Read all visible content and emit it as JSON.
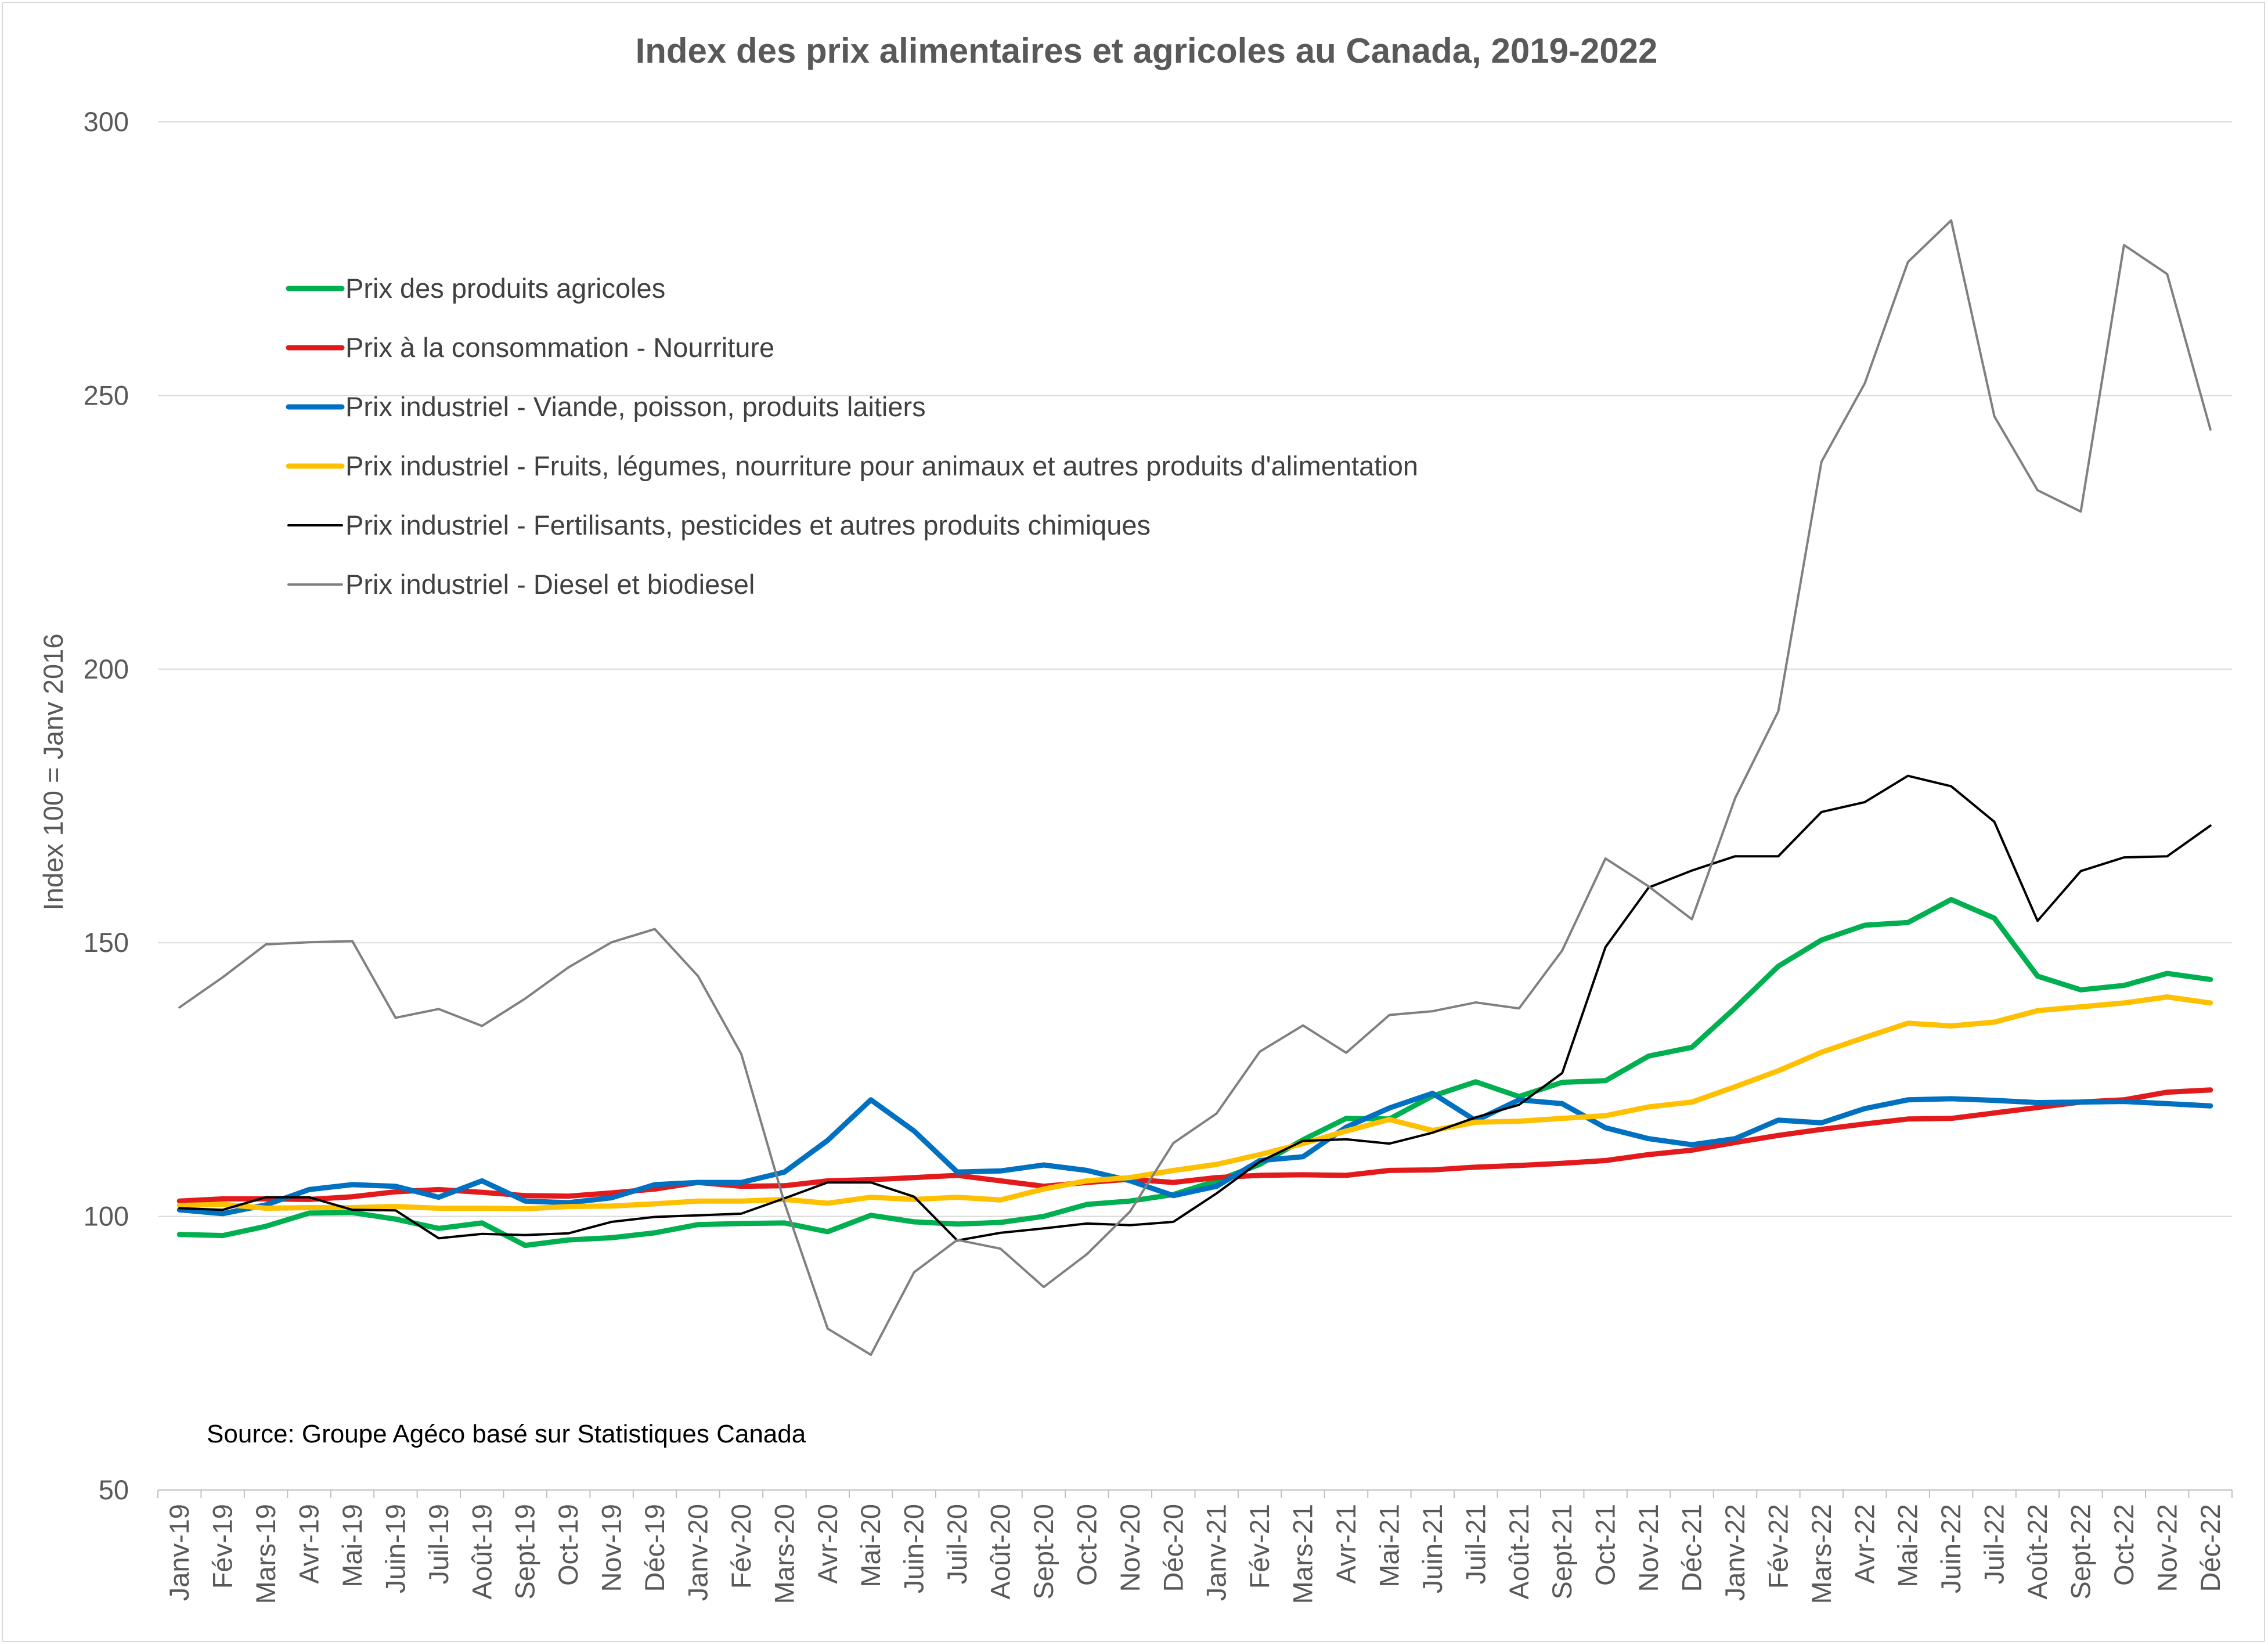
{
  "chart_data": {
    "type": "line",
    "title": "Index des prix alimentaires et agricoles au Canada, 2019-2022",
    "ylabel": "Index 100 = Janv 2016",
    "xlabel": "",
    "ylim": [
      50,
      300
    ],
    "yticks": [
      50,
      100,
      150,
      200,
      250,
      300
    ],
    "grid": true,
    "legend_position": "top-left",
    "source": "Source: Groupe Agéco basé sur Statistiques Canada",
    "categories": [
      "Janv-19",
      "Fév-19",
      "Mars-19",
      "Avr-19",
      "Mai-19",
      "Juin-19",
      "Juil-19",
      "Août-19",
      "Sept-19",
      "Oct-19",
      "Nov-19",
      "Déc-19",
      "Janv-20",
      "Fév-20",
      "Mars-20",
      "Avr-20",
      "Mai-20",
      "Juin-20",
      "Juil-20",
      "Août-20",
      "Sept-20",
      "Oct-20",
      "Nov-20",
      "Déc-20",
      "Janv-21",
      "Fév-21",
      "Mars-21",
      "Avr-21",
      "Mai-21",
      "Juin-21",
      "Juil-21",
      "Août-21",
      "Sept-21",
      "Oct-21",
      "Nov-21",
      "Déc-21",
      "Janv-22",
      "Fév-22",
      "Mars-22",
      "Avr-22",
      "Mai-22",
      "Juin-22",
      "Juil-22",
      "Août-22",
      "Sept-22",
      "Oct-22",
      "Nov-22",
      "Déc-22"
    ],
    "series": [
      {
        "name": "Prix des produits agricoles",
        "color": "#00b050",
        "width": 9,
        "values": [
          96.7,
          96.5,
          98.2,
          100.6,
          100.7,
          99.5,
          97.8,
          98.8,
          94.7,
          95.7,
          96.1,
          97.0,
          98.5,
          98.7,
          98.8,
          97.2,
          100.2,
          99.0,
          98.6,
          98.9,
          100.0,
          102.2,
          102.8,
          104.0,
          106.5,
          109.5,
          114.0,
          117.9,
          117.8,
          122.0,
          124.6,
          121.9,
          124.5,
          124.8,
          129.3,
          130.9,
          138.1,
          145.7,
          150.5,
          153.2,
          153.7,
          157.9,
          154.5,
          143.9,
          141.4,
          142.2,
          144.4,
          143.3
        ]
      },
      {
        "name": "Prix à la consommation - Nourriture",
        "color": "#e31a1c",
        "width": 9,
        "values": [
          102.8,
          103.2,
          103.2,
          103.1,
          103.6,
          104.5,
          104.9,
          104.4,
          103.8,
          103.7,
          104.3,
          105.0,
          106.2,
          105.5,
          105.6,
          106.5,
          106.7,
          107.1,
          107.5,
          106.5,
          105.5,
          106.2,
          106.8,
          106.2,
          107.1,
          107.5,
          107.6,
          107.5,
          108.4,
          108.5,
          109.0,
          109.3,
          109.7,
          110.2,
          111.3,
          112.1,
          113.5,
          114.8,
          115.9,
          116.9,
          117.8,
          117.9,
          118.9,
          119.9,
          120.9,
          121.3,
          122.7,
          123.1
        ]
      },
      {
        "name": "Prix industriel - Viande, poisson, produits laitiers",
        "color": "#0070c0",
        "width": 9,
        "values": [
          101.2,
          100.5,
          102.1,
          104.9,
          105.8,
          105.5,
          103.5,
          106.5,
          102.8,
          102.5,
          103.4,
          105.8,
          106.2,
          106.2,
          108.1,
          113.9,
          121.3,
          115.6,
          108.1,
          108.3,
          109.4,
          108.4,
          106.5,
          103.8,
          105.5,
          110.2,
          110.9,
          116.3,
          119.8,
          122.5,
          117.5,
          121.3,
          120.6,
          116.2,
          114.2,
          113.1,
          114.2,
          117.6,
          117.1,
          119.7,
          121.3,
          121.5,
          121.2,
          120.8,
          120.9,
          121.0,
          120.6,
          120.2
        ]
      },
      {
        "name": "Prix industriel - Fruits, légumes, nourriture pour animaux et autres produits d'alimentation",
        "color": "#ffc000",
        "width": 9,
        "values": [
          102.0,
          102.2,
          101.5,
          101.6,
          101.6,
          101.8,
          101.5,
          101.5,
          101.4,
          101.8,
          101.9,
          102.3,
          102.8,
          102.8,
          103.1,
          102.4,
          103.5,
          103.1,
          103.5,
          103.0,
          105.0,
          106.5,
          107.1,
          108.4,
          109.5,
          111.3,
          113.3,
          115.6,
          117.7,
          115.7,
          117.2,
          117.4,
          117.9,
          118.4,
          120.0,
          120.9,
          123.7,
          126.6,
          130.0,
          132.7,
          135.3,
          134.8,
          135.5,
          137.6,
          138.3,
          139.0,
          140.1,
          139.0
        ]
      },
      {
        "name": "Prix industriel - Fertilisants, pesticides et autres produits chimiques",
        "color": "#000000",
        "width": 4,
        "values": [
          101.5,
          101.2,
          103.5,
          103.5,
          101.2,
          101.1,
          96.0,
          96.8,
          96.6,
          96.9,
          99.0,
          99.9,
          100.2,
          100.5,
          103.3,
          106.2,
          106.2,
          103.6,
          95.6,
          97.0,
          97.8,
          98.7,
          98.4,
          99.0,
          104.2,
          110.0,
          113.8,
          114.1,
          113.3,
          115.3,
          118.1,
          120.4,
          126.2,
          149.2,
          160.1,
          163.2,
          165.8,
          165.8,
          173.9,
          175.7,
          180.5,
          178.6,
          172.1,
          154.0,
          163.1,
          165.6,
          165.8,
          171.4
        ]
      },
      {
        "name": "Prix industriel - Diesel et biodiesel",
        "color": "#808080",
        "width": 4,
        "values": [
          138.2,
          143.7,
          149.7,
          150.1,
          150.3,
          136.3,
          137.9,
          134.8,
          139.8,
          145.5,
          150.1,
          152.5,
          143.9,
          129.7,
          102.5,
          79.5,
          74.7,
          89.8,
          95.7,
          94.1,
          87.1,
          93.1,
          100.9,
          113.4,
          118.8,
          130.1,
          134.9,
          129.9,
          136.8,
          137.5,
          139.1,
          138.0,
          148.6,
          165.4,
          160.3,
          154.3,
          176.4,
          192.3,
          237.9,
          252.2,
          274.4,
          282.0,
          246.2,
          232.7,
          228.8,
          277.5,
          272.2,
          243.8
        ]
      }
    ]
  }
}
